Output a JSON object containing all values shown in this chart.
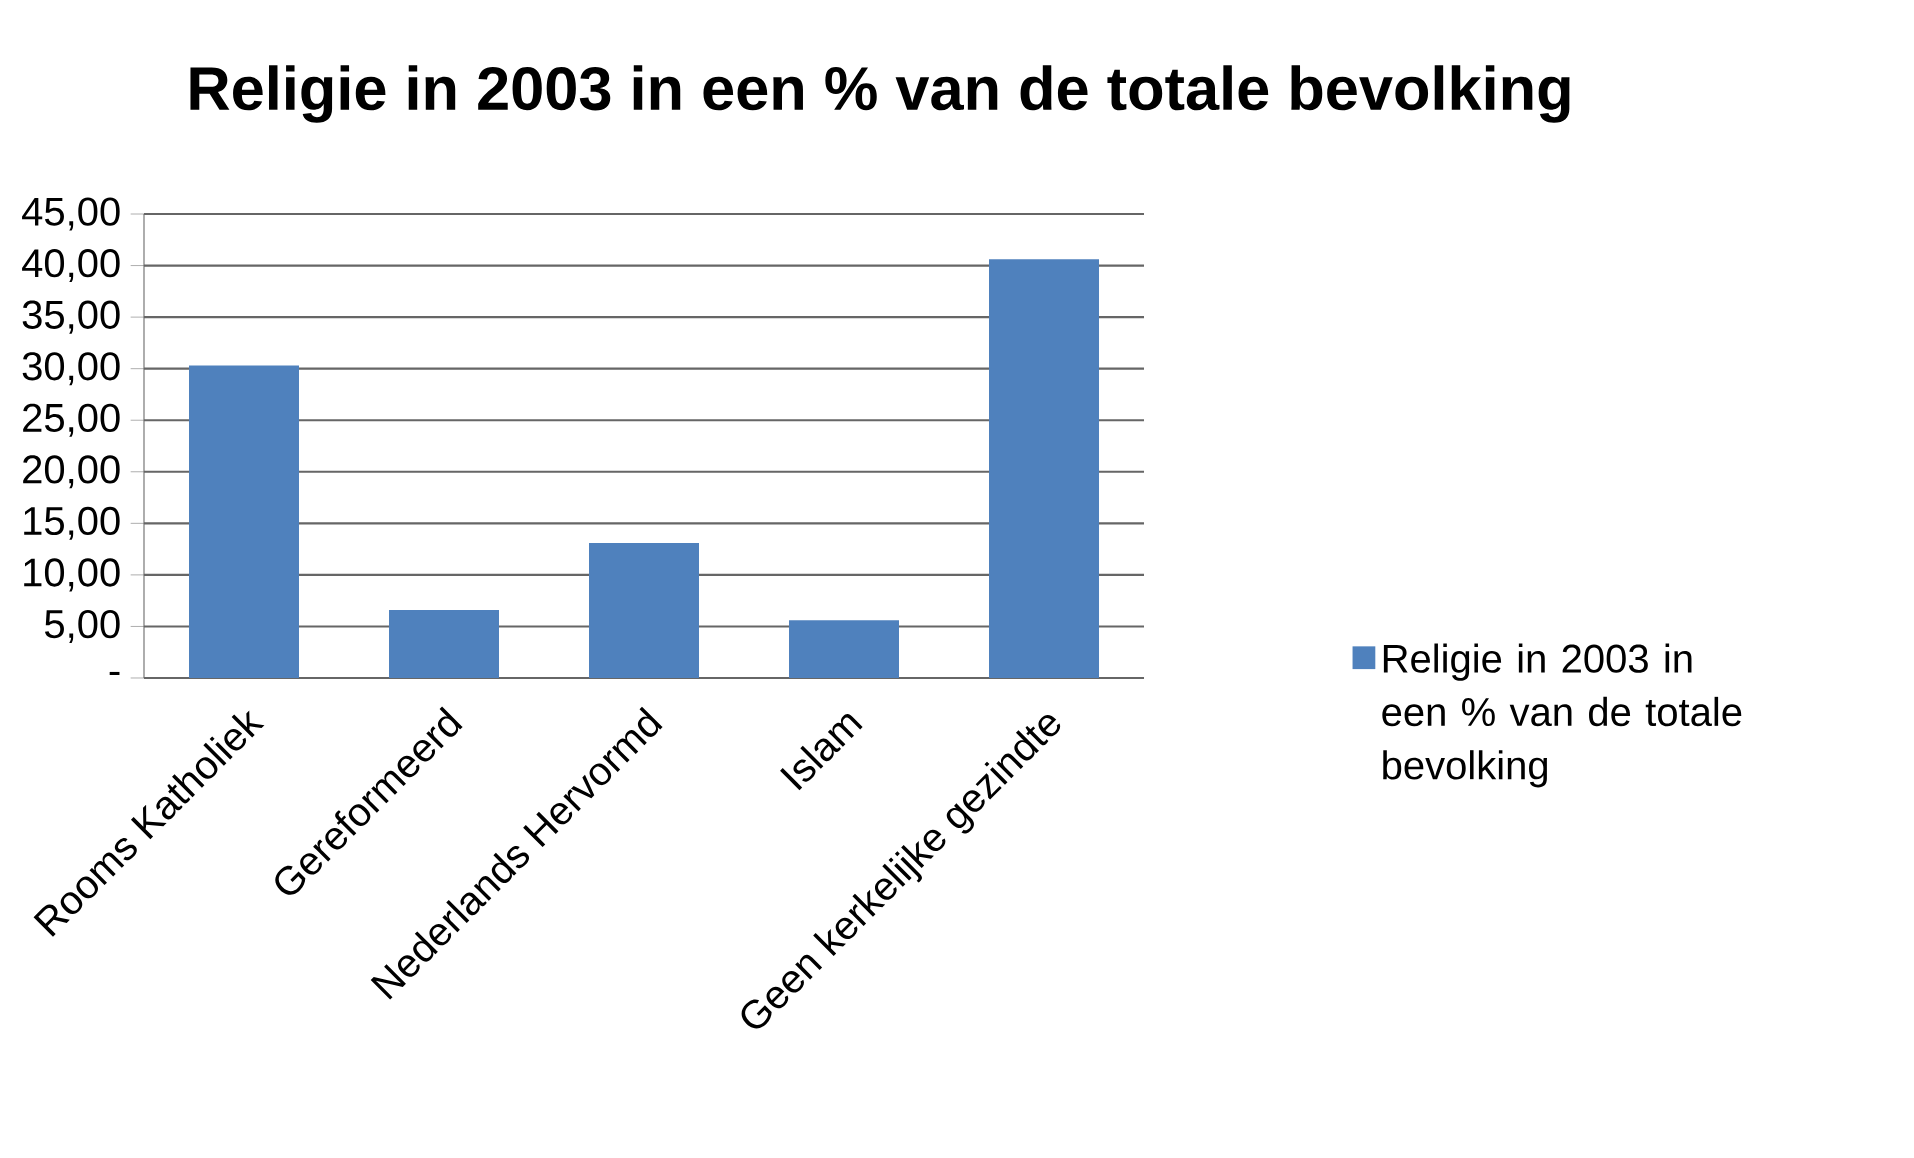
{
  "chart_data": {
    "type": "bar",
    "title": "Religie in 2003 in een % van de totale bevolking",
    "categories": [
      "Rooms Katholiek",
      "Gereformeerd",
      "Nederlands Hervormd",
      "Islam",
      "Geen kerkelijke gezindte"
    ],
    "series": [
      {
        "name": "Religie in 2003 in een % van de totale bevolking",
        "color": "#4f81bd",
        "values": [
          30.3,
          6.6,
          13.1,
          5.6,
          40.6
        ]
      }
    ],
    "ylim": [
      0,
      45
    ],
    "yticks": [
      {
        "value": 0,
        "label": "-"
      },
      {
        "value": 5,
        "label": "5,00"
      },
      {
        "value": 10,
        "label": "10,00"
      },
      {
        "value": 15,
        "label": "15,00"
      },
      {
        "value": 20,
        "label": "20,00"
      },
      {
        "value": 25,
        "label": "25,00"
      },
      {
        "value": 30,
        "label": "30,00"
      },
      {
        "value": 35,
        "label": "35,00"
      },
      {
        "value": 40,
        "label": "40,00"
      },
      {
        "value": 45,
        "label": "45,00"
      }
    ],
    "grid": "y",
    "legend": "right"
  }
}
